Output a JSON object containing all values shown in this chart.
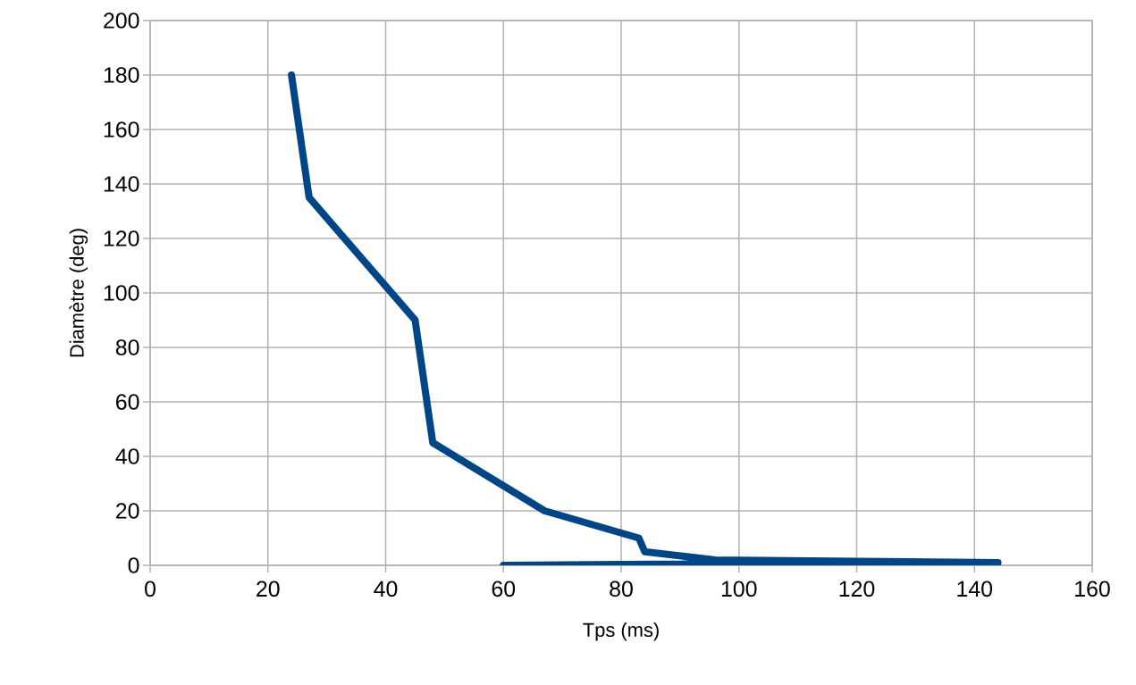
{
  "chart_data": {
    "type": "line",
    "xlabel": "Tps (ms)",
    "ylabel": "Diamètre (deg)",
    "x": [
      24,
      27,
      45,
      48,
      67,
      83,
      84,
      96,
      120,
      144,
      100,
      80,
      60
    ],
    "series": [
      {
        "color": "#004586",
        "values": [
          180,
          135,
          90,
          45,
          20,
          10,
          5,
          2,
          1.5,
          1,
          0.7,
          0.3,
          0
        ]
      }
    ],
    "xlim": [
      0,
      160
    ],
    "xticks": [
      0,
      20,
      40,
      60,
      80,
      100,
      120,
      140,
      160
    ],
    "ylim": [
      0,
      200
    ],
    "yticks": [
      0,
      20,
      40,
      60,
      80,
      100,
      120,
      140,
      160,
      180,
      200
    ],
    "grid": true,
    "marker": "none",
    "line_style": "solid"
  }
}
